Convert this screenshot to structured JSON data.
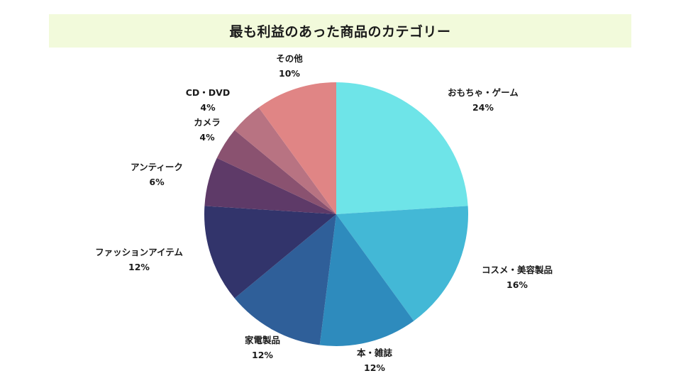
{
  "chart_data": {
    "type": "pie",
    "title": "最も利益のあった商品のカテゴリー",
    "slices": [
      {
        "label": "おもちゃ・ゲーム",
        "value": 24,
        "value_label": "24%",
        "color": "#6ee4e8"
      },
      {
        "label": "コスメ・美容製品",
        "value": 16,
        "value_label": "16%",
        "color": "#43b8d6"
      },
      {
        "label": "本・雑誌",
        "value": 12,
        "value_label": "12%",
        "color": "#2e8bbd"
      },
      {
        "label": "家電製品",
        "value": 12,
        "value_label": "12%",
        "color": "#2f5f99"
      },
      {
        "label": "ファッションアイテム",
        "value": 12,
        "value_label": "12%",
        "color": "#32346b"
      },
      {
        "label": "アンティーク",
        "value": 6,
        "value_label": "6%",
        "color": "#5e3a68"
      },
      {
        "label": "カメラ",
        "value": 4,
        "value_label": "4%",
        "color": "#8a5270"
      },
      {
        "label": "CD・DVD",
        "value": 4,
        "value_label": "4%",
        "color": "#b87382"
      },
      {
        "label": "その他",
        "value": 10,
        "value_label": "10%",
        "color": "#e08585"
      }
    ]
  }
}
